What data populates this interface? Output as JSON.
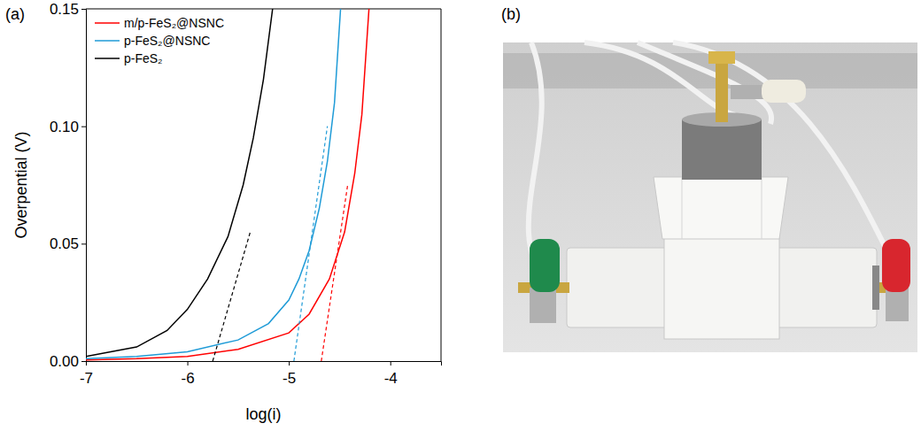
{
  "panel_labels": [
    "(a)",
    "(b)"
  ],
  "chart_data": {
    "type": "line",
    "x_label": "log(i)",
    "y_label": "Overpential (V)",
    "xlim": [
      -7,
      -3.5
    ],
    "xticks": [
      -7,
      -6,
      -5,
      -4
    ],
    "ylim": [
      0,
      0.15
    ],
    "yticks": [
      {
        "value": 0,
        "label": "0.00"
      },
      0.05,
      {
        "value": 0.1,
        "label": "0.10"
      },
      0.15
    ],
    "grid": false,
    "legend": "upper left",
    "series": [
      {
        "name": "m/p-FeS₂@NSNC",
        "color": "#ff0000",
        "line_style": "solid",
        "x": [
          -7,
          -6.5,
          -6,
          -5.5,
          -5,
          -4.8,
          -4.6,
          -4.45,
          -4.35,
          -4.28,
          -4.21
        ],
        "values": [
          0.0005,
          0.001,
          0.002,
          0.005,
          0.012,
          0.02,
          0.035,
          0.055,
          0.08,
          0.105,
          0.15
        ]
      },
      {
        "name": "p-FeS₂@NSNC",
        "color": "#1f9bd7",
        "line_style": "solid",
        "x": [
          -7,
          -6.5,
          -6,
          -5.5,
          -5.2,
          -5,
          -4.9,
          -4.8,
          -4.7,
          -4.62,
          -4.55,
          -4.49
        ],
        "values": [
          0.001,
          0.002,
          0.004,
          0.009,
          0.016,
          0.026,
          0.035,
          0.047,
          0.065,
          0.085,
          0.11,
          0.15
        ]
      },
      {
        "name": "p-FeS₂",
        "color": "#000000",
        "line_style": "solid",
        "x": [
          -7,
          -6.5,
          -6.2,
          -6,
          -5.8,
          -5.6,
          -5.45,
          -5.35,
          -5.25,
          -5.16
        ],
        "values": [
          0.002,
          0.006,
          0.013,
          0.022,
          0.035,
          0.053,
          0.075,
          0.095,
          0.12,
          0.15
        ]
      },
      {
        "color": "#ff0000",
        "line_style": "dashed",
        "x": [
          -4.68,
          -4.42
        ],
        "values": [
          0,
          0.075
        ]
      },
      {
        "color": "#1f9bd7",
        "line_style": "dashed",
        "x": [
          -4.95,
          -4.62
        ],
        "values": [
          0,
          0.1
        ]
      },
      {
        "color": "#000000",
        "line_style": "dashed",
        "x": [
          -5.75,
          -5.38
        ],
        "values": [
          0,
          0.055
        ]
      }
    ]
  }
}
